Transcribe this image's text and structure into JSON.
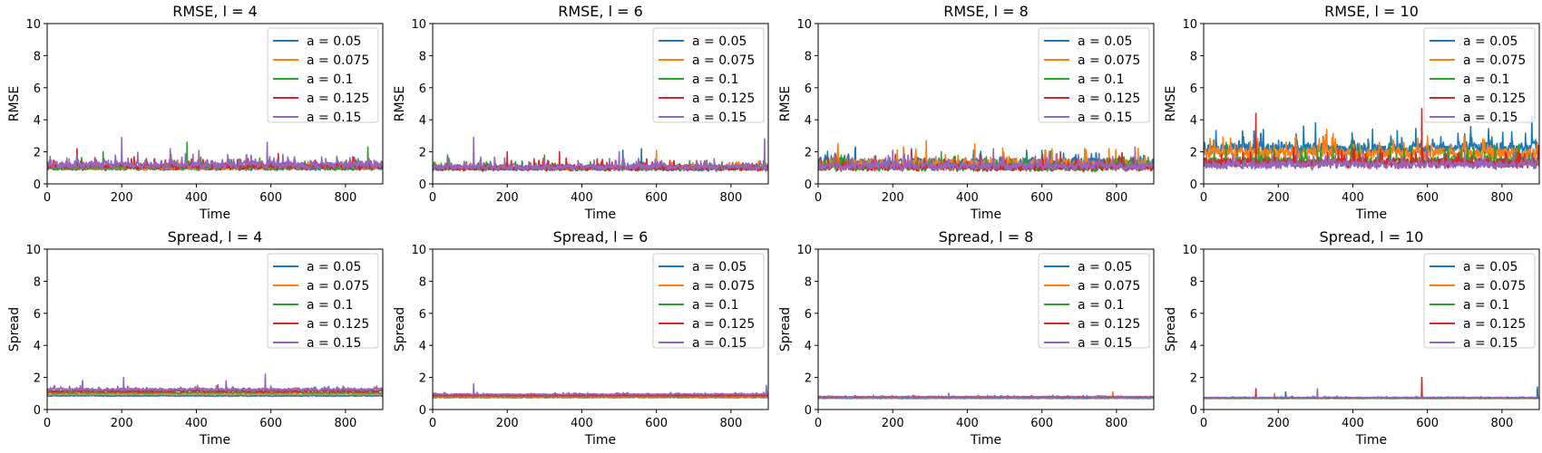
{
  "chart_data": [
    {
      "type": "line",
      "title": "RMSE, l = 4",
      "xlabel": "Time",
      "ylabel": "RMSE",
      "xlim": [
        0,
        900
      ],
      "ylim": [
        0,
        10
      ],
      "xticks": [
        0,
        200,
        400,
        600,
        800
      ],
      "yticks": [
        0,
        2,
        4,
        6,
        8,
        10
      ],
      "grid": false,
      "legend": "top-right",
      "series": [
        {
          "name": "a = 0.05",
          "color": "#1f77b4",
          "base": 0.95,
          "noise": 0.12,
          "spikes": [
            [
              120,
              1.4
            ],
            [
              600,
              1.3
            ]
          ]
        },
        {
          "name": "a = 0.075",
          "color": "#ff7f0e",
          "base": 1.0,
          "noise": 0.15,
          "spikes": [
            [
              350,
              1.5
            ],
            [
              700,
              1.4
            ]
          ]
        },
        {
          "name": "a = 0.1",
          "color": "#2ca02c",
          "base": 1.05,
          "noise": 0.2,
          "spikes": [
            [
              375,
              2.6
            ],
            [
              150,
              2.0
            ],
            [
              860,
              2.3
            ]
          ]
        },
        {
          "name": "a = 0.125",
          "color": "#d62728",
          "base": 1.1,
          "noise": 0.22,
          "spikes": [
            [
              80,
              2.2
            ],
            [
              620,
              1.9
            ]
          ]
        },
        {
          "name": "a = 0.15",
          "color": "#9467bd",
          "base": 1.2,
          "noise": 0.28,
          "spikes": [
            [
              200,
              2.9
            ],
            [
              590,
              2.6
            ],
            [
              330,
              2.2
            ]
          ]
        }
      ]
    },
    {
      "type": "line",
      "title": "RMSE, l = 6",
      "xlabel": "Time",
      "ylabel": "RMSE",
      "xlim": [
        0,
        900
      ],
      "ylim": [
        0,
        10
      ],
      "xticks": [
        0,
        200,
        400,
        600,
        800
      ],
      "yticks": [
        0,
        2,
        4,
        6,
        8,
        10
      ],
      "grid": false,
      "legend": "top-right",
      "series": [
        {
          "name": "a = 0.05",
          "color": "#1f77b4",
          "base": 0.95,
          "noise": 0.15,
          "spikes": [
            [
              510,
              2.1
            ],
            [
              560,
              2.2
            ]
          ]
        },
        {
          "name": "a = 0.075",
          "color": "#ff7f0e",
          "base": 1.0,
          "noise": 0.15,
          "spikes": [
            [
              600,
              2.1
            ]
          ]
        },
        {
          "name": "a = 0.1",
          "color": "#2ca02c",
          "base": 1.0,
          "noise": 0.18,
          "spikes": [
            [
              40,
              1.8
            ],
            [
              300,
              1.8
            ]
          ]
        },
        {
          "name": "a = 0.125",
          "color": "#d62728",
          "base": 1.0,
          "noise": 0.2,
          "spikes": [
            [
              200,
              2.0
            ],
            [
              340,
              2.0
            ]
          ]
        },
        {
          "name": "a = 0.15",
          "color": "#9467bd",
          "base": 1.05,
          "noise": 0.22,
          "spikes": [
            [
              110,
              2.9
            ],
            [
              890,
              2.8
            ],
            [
              500,
              2.0
            ]
          ]
        }
      ]
    },
    {
      "type": "line",
      "title": "RMSE, l = 8",
      "xlabel": "Time",
      "ylabel": "RMSE",
      "xlim": [
        0,
        900
      ],
      "ylim": [
        0,
        10
      ],
      "xticks": [
        0,
        200,
        400,
        600,
        800
      ],
      "yticks": [
        0,
        2,
        4,
        6,
        8,
        10
      ],
      "grid": false,
      "legend": "top-right",
      "series": [
        {
          "name": "a = 0.05",
          "color": "#1f77b4",
          "base": 1.35,
          "noise": 0.3,
          "spikes": [
            [
              100,
              2.3
            ],
            [
              250,
              2.2
            ],
            [
              600,
              2.1
            ]
          ]
        },
        {
          "name": "a = 0.075",
          "color": "#ff7f0e",
          "base": 1.25,
          "noise": 0.35,
          "spikes": [
            [
              290,
              2.7
            ],
            [
              420,
              2.5
            ],
            [
              780,
              2.2
            ]
          ]
        },
        {
          "name": "a = 0.1",
          "color": "#2ca02c",
          "base": 1.0,
          "noise": 0.25,
          "spikes": [
            [
              330,
              2.0
            ],
            [
              560,
              1.9
            ]
          ]
        },
        {
          "name": "a = 0.125",
          "color": "#d62728",
          "base": 1.05,
          "noise": 0.28,
          "spikes": [
            [
              250,
              2.1
            ],
            [
              650,
              2.0
            ]
          ]
        },
        {
          "name": "a = 0.15",
          "color": "#9467bd",
          "base": 1.1,
          "noise": 0.3,
          "spikes": [
            [
              200,
              2.1
            ],
            [
              470,
              2.2
            ],
            [
              850,
              2.3
            ]
          ]
        }
      ]
    },
    {
      "type": "line",
      "title": "RMSE, l = 10",
      "xlabel": "Time",
      "ylabel": "RMSE",
      "xlim": [
        0,
        900
      ],
      "ylim": [
        0,
        10
      ],
      "xticks": [
        0,
        200,
        400,
        600,
        800
      ],
      "yticks": [
        0,
        2,
        4,
        6,
        8,
        10
      ],
      "grid": false,
      "legend": "top-right",
      "series": [
        {
          "name": "a = 0.05",
          "color": "#1f77b4",
          "base": 2.2,
          "noise": 0.45,
          "spikes": [
            [
              300,
              3.8
            ],
            [
              880,
              4.2
            ],
            [
              160,
              3.4
            ]
          ]
        },
        {
          "name": "a = 0.075",
          "color": "#ff7f0e",
          "base": 1.9,
          "noise": 0.4,
          "spikes": [
            [
              330,
              3.4
            ],
            [
              600,
              3.0
            ]
          ]
        },
        {
          "name": "a = 0.1",
          "color": "#2ca02c",
          "base": 1.4,
          "noise": 0.35,
          "spikes": [
            [
              60,
              2.6
            ],
            [
              500,
              2.5
            ]
          ]
        },
        {
          "name": "a = 0.125",
          "color": "#d62728",
          "base": 1.3,
          "noise": 0.35,
          "spikes": [
            [
              140,
              4.4
            ],
            [
              585,
              4.7
            ]
          ]
        },
        {
          "name": "a = 0.15",
          "color": "#9467bd",
          "base": 1.2,
          "noise": 0.3,
          "spikes": [
            [
              250,
              2.3
            ],
            [
              700,
              2.1
            ]
          ]
        }
      ]
    },
    {
      "type": "line",
      "title": "Spread, l = 4",
      "xlabel": "Time",
      "ylabel": "Spread",
      "xlim": [
        0,
        900
      ],
      "ylim": [
        0,
        10
      ],
      "xticks": [
        0,
        200,
        400,
        600,
        800
      ],
      "yticks": [
        0,
        2,
        4,
        6,
        8,
        10
      ],
      "grid": false,
      "legend": "top-right",
      "series": [
        {
          "name": "a = 0.05",
          "color": "#1f77b4",
          "base": 0.85,
          "noise": 0.03,
          "spikes": []
        },
        {
          "name": "a = 0.075",
          "color": "#ff7f0e",
          "base": 0.95,
          "noise": 0.04,
          "spikes": []
        },
        {
          "name": "a = 0.1",
          "color": "#2ca02c",
          "base": 1.05,
          "noise": 0.05,
          "spikes": []
        },
        {
          "name": "a = 0.125",
          "color": "#d62728",
          "base": 1.15,
          "noise": 0.07,
          "spikes": []
        },
        {
          "name": "a = 0.15",
          "color": "#9467bd",
          "base": 1.25,
          "noise": 0.1,
          "spikes": [
            [
              205,
              2.0
            ],
            [
              585,
              2.2
            ],
            [
              95,
              1.8
            ],
            [
              480,
              1.8
            ]
          ]
        }
      ]
    },
    {
      "type": "line",
      "title": "Spread, l = 6",
      "xlabel": "Time",
      "ylabel": "Spread",
      "xlim": [
        0,
        900
      ],
      "ylim": [
        0,
        10
      ],
      "xticks": [
        0,
        200,
        400,
        600,
        800
      ],
      "yticks": [
        0,
        2,
        4,
        6,
        8,
        10
      ],
      "grid": false,
      "legend": "top-right",
      "series": [
        {
          "name": "a = 0.05",
          "color": "#1f77b4",
          "base": 0.75,
          "noise": 0.02,
          "spikes": []
        },
        {
          "name": "a = 0.075",
          "color": "#ff7f0e",
          "base": 0.8,
          "noise": 0.02,
          "spikes": []
        },
        {
          "name": "a = 0.1",
          "color": "#2ca02c",
          "base": 0.85,
          "noise": 0.03,
          "spikes": []
        },
        {
          "name": "a = 0.125",
          "color": "#d62728",
          "base": 0.9,
          "noise": 0.03,
          "spikes": []
        },
        {
          "name": "a = 0.15",
          "color": "#9467bd",
          "base": 0.95,
          "noise": 0.04,
          "spikes": [
            [
              110,
              1.6
            ],
            [
              895,
              1.5
            ]
          ]
        }
      ]
    },
    {
      "type": "line",
      "title": "Spread, l = 8",
      "xlabel": "Time",
      "ylabel": "Spread",
      "xlim": [
        0,
        900
      ],
      "ylim": [
        0,
        10
      ],
      "xticks": [
        0,
        200,
        400,
        600,
        800
      ],
      "yticks": [
        0,
        2,
        4,
        6,
        8,
        10
      ],
      "grid": false,
      "legend": "top-right",
      "series": [
        {
          "name": "a = 0.05",
          "color": "#1f77b4",
          "base": 0.7,
          "noise": 0.02,
          "spikes": []
        },
        {
          "name": "a = 0.075",
          "color": "#ff7f0e",
          "base": 0.72,
          "noise": 0.02,
          "spikes": [
            [
              790,
              1.1
            ]
          ]
        },
        {
          "name": "a = 0.1",
          "color": "#2ca02c",
          "base": 0.75,
          "noise": 0.02,
          "spikes": []
        },
        {
          "name": "a = 0.125",
          "color": "#d62728",
          "base": 0.78,
          "noise": 0.03,
          "spikes": []
        },
        {
          "name": "a = 0.15",
          "color": "#9467bd",
          "base": 0.8,
          "noise": 0.03,
          "spikes": [
            [
              350,
              1.0
            ]
          ]
        }
      ]
    },
    {
      "type": "line",
      "title": "Spread, l = 10",
      "xlabel": "Time",
      "ylabel": "Spread",
      "xlim": [
        0,
        900
      ],
      "ylim": [
        0,
        10
      ],
      "xticks": [
        0,
        200,
        400,
        600,
        800
      ],
      "yticks": [
        0,
        2,
        4,
        6,
        8,
        10
      ],
      "grid": false,
      "legend": "top-right",
      "series": [
        {
          "name": "a = 0.05",
          "color": "#1f77b4",
          "base": 0.7,
          "noise": 0.02,
          "spikes": [
            [
              220,
              1.1
            ],
            [
              895,
              1.4
            ]
          ]
        },
        {
          "name": "a = 0.075",
          "color": "#ff7f0e",
          "base": 0.72,
          "noise": 0.02,
          "spikes": [
            [
              190,
              1.0
            ]
          ]
        },
        {
          "name": "a = 0.1",
          "color": "#2ca02c",
          "base": 0.7,
          "noise": 0.02,
          "spikes": []
        },
        {
          "name": "a = 0.125",
          "color": "#d62728",
          "base": 0.72,
          "noise": 0.02,
          "spikes": [
            [
              140,
              1.3
            ],
            [
              585,
              2.0
            ]
          ]
        },
        {
          "name": "a = 0.15",
          "color": "#9467bd",
          "base": 0.75,
          "noise": 0.03,
          "spikes": [
            [
              305,
              1.3
            ]
          ]
        }
      ]
    }
  ]
}
